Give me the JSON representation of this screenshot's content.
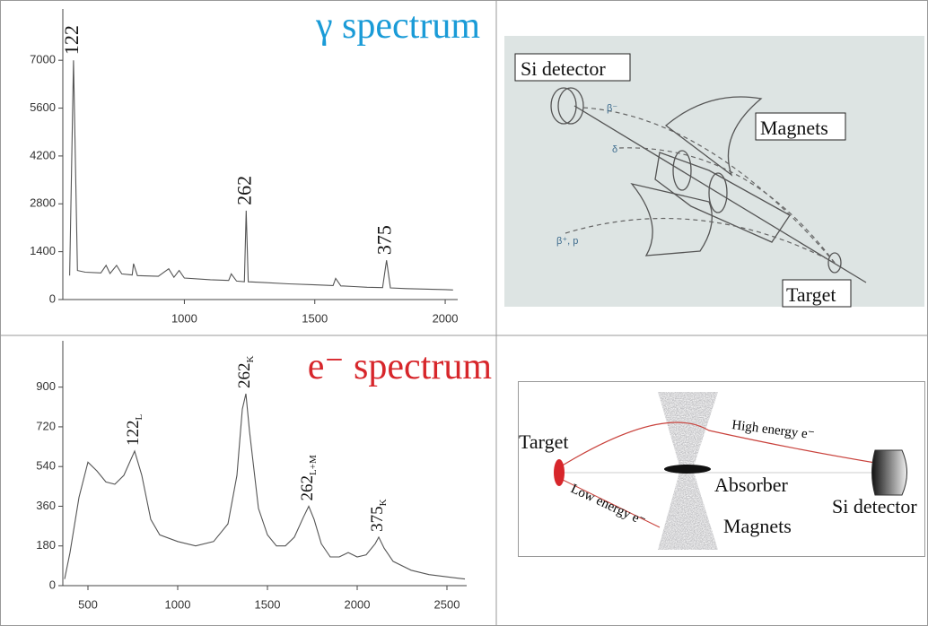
{
  "chart_data": [
    {
      "type": "line",
      "title": "γ spectrum",
      "title_color": "#1a9bd7",
      "color": "#555555",
      "x": [
        560,
        575,
        590,
        620,
        680,
        700,
        715,
        740,
        760,
        800,
        805,
        820,
        900,
        940,
        960,
        980,
        1000,
        1100,
        1170,
        1180,
        1200,
        1230,
        1237,
        1245,
        1300,
        1400,
        1500,
        1570,
        1580,
        1600,
        1650,
        1700,
        1760,
        1775,
        1790,
        1850,
        1950,
        2000,
        2030
      ],
      "values": [
        700,
        7000,
        850,
        800,
        780,
        1000,
        760,
        1000,
        750,
        720,
        1050,
        700,
        680,
        900,
        650,
        850,
        630,
        580,
        560,
        750,
        540,
        520,
        2600,
        520,
        500,
        460,
        430,
        410,
        620,
        400,
        380,
        360,
        350,
        1150,
        340,
        320,
        300,
        290,
        280
      ],
      "xlim": [
        534,
        2048
      ],
      "ylim": [
        0,
        8500
      ],
      "xticks": [
        1000,
        1500,
        2000
      ],
      "yticks": [
        0,
        1400,
        2800,
        4200,
        5600,
        7000
      ],
      "annotations": [
        {
          "text": "122",
          "x": 575
        },
        {
          "text": "262",
          "x": 1237
        },
        {
          "text": "375",
          "x": 1775
        }
      ]
    },
    {
      "type": "line",
      "title": "e⁻ spectrum",
      "title_color": "#d7262b",
      "color": "#555555",
      "x": [
        370,
        400,
        450,
        500,
        550,
        600,
        650,
        700,
        760,
        800,
        850,
        900,
        1000,
        1100,
        1200,
        1280,
        1330,
        1360,
        1380,
        1400,
        1450,
        1500,
        1550,
        1600,
        1650,
        1700,
        1730,
        1760,
        1800,
        1850,
        1900,
        1950,
        2000,
        2050,
        2100,
        2120,
        2150,
        2200,
        2300,
        2400,
        2500,
        2600
      ],
      "values": [
        30,
        150,
        400,
        560,
        520,
        470,
        460,
        500,
        610,
        500,
        300,
        230,
        200,
        180,
        200,
        280,
        500,
        800,
        870,
        700,
        350,
        230,
        180,
        180,
        220,
        310,
        360,
        300,
        190,
        130,
        130,
        150,
        130,
        140,
        190,
        220,
        170,
        110,
        70,
        50,
        40,
        30
      ],
      "xlim": [
        360,
        2610
      ],
      "ylim": [
        0,
        1110
      ],
      "xticks": [
        500,
        1000,
        1500,
        2000,
        2500
      ],
      "yticks": [
        0,
        180,
        360,
        540,
        720,
        900
      ],
      "annotations": [
        {
          "text": "122",
          "sub": "L",
          "x": 760
        },
        {
          "text": "262",
          "sub": "K",
          "x": 1380
        },
        {
          "text": "262",
          "sub": "L+M",
          "x": 1730
        },
        {
          "text": "375",
          "sub": "K",
          "x": 2120
        }
      ]
    }
  ],
  "diagrams": [
    {
      "si_detector": "Si detector",
      "magnets": "Magnets",
      "target": "Target",
      "beta_minus": "β⁻",
      "delta": "δ",
      "beta_plus_p": "β⁺, p"
    },
    {
      "target": "Target",
      "high_energy": "High energy e⁻",
      "absorber": "Absorber",
      "si_detector": "Si detector",
      "low_energy": "Low energy e⁻",
      "magnets": "Magnets"
    }
  ]
}
